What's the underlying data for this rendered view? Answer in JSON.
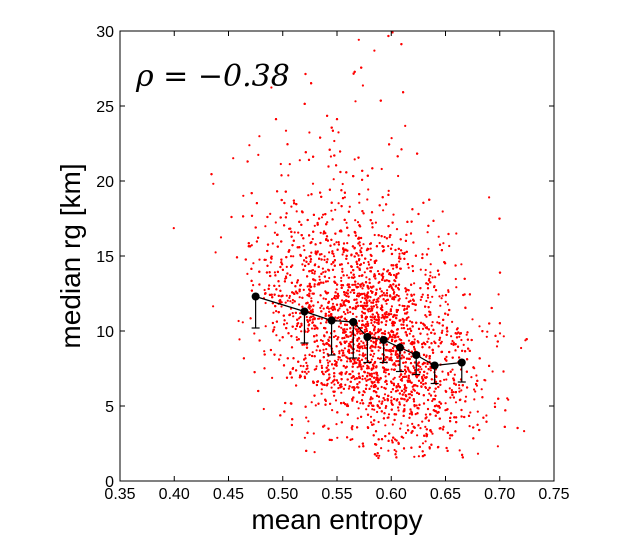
{
  "chart_data": {
    "type": "scatter",
    "xlabel": "mean entropy",
    "ylabel": "median rg [km]",
    "xlim": [
      0.35,
      0.75
    ],
    "ylim": [
      0,
      30
    ],
    "xticks": [
      "0.35",
      "0.40",
      "0.45",
      "0.50",
      "0.55",
      "0.60",
      "0.65",
      "0.70",
      "0.75"
    ],
    "yticks": [
      "0",
      "5",
      "10",
      "15",
      "20",
      "25",
      "30"
    ],
    "annotation": "ρ = −0.38",
    "grid": false,
    "scatter": {
      "color": "#ff0000",
      "description_of_cloud": null,
      "center": [
        0.58,
        9.5
      ],
      "n_points": 5500,
      "x_std": 0.048,
      "y_std_base": 3.6
    },
    "series": [
      {
        "color": "#000000",
        "x": [
          0.475,
          0.52,
          0.545,
          0.565,
          0.578,
          0.593,
          0.608,
          0.623,
          0.64,
          0.665
        ],
        "y": [
          12.3,
          11.3,
          10.7,
          10.6,
          9.6,
          9.4,
          8.9,
          8.4,
          7.7,
          7.9
        ],
        "err_low": [
          2.1,
          2.1,
          2.3,
          2.4,
          1.7,
          1.5,
          1.6,
          1.3,
          1.2,
          1.3
        ],
        "err_high": [
          0,
          0,
          0,
          0,
          0,
          0,
          0,
          0,
          0,
          0
        ]
      }
    ]
  }
}
